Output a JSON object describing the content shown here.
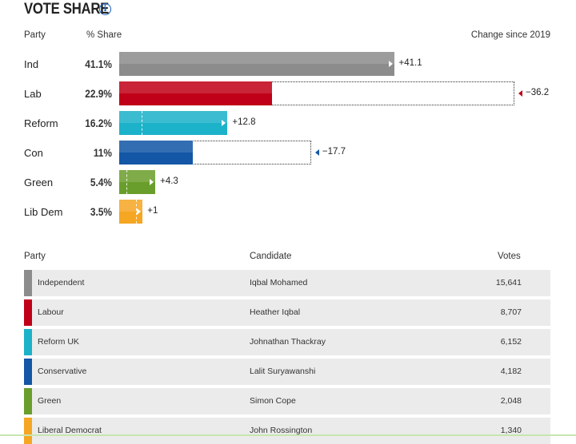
{
  "title": "VOTE SHARE",
  "info_icon": "info-icon",
  "headers": {
    "party": "Party",
    "share": "% Share",
    "change": "Change since 2019"
  },
  "chart_data": {
    "type": "bar",
    "orientation": "horizontal",
    "categories": [
      "Ind",
      "Lab",
      "Reform",
      "Con",
      "Green",
      "Lib Dem"
    ],
    "series": [
      {
        "values": [
          41.1,
          22.9,
          16.2,
          11,
          5.4,
          3.5
        ]
      }
    ],
    "previous_2019": [
      0,
      59.1,
      3.4,
      28.7,
      1.1,
      2.5
    ],
    "share_labels": [
      "41.1%",
      "22.9%",
      "16.2%",
      "11%",
      "5.4%",
      "3.5%"
    ],
    "change_labels": [
      "+41.1",
      "−36.2",
      "+12.8",
      "−17.7",
      "+4.3",
      "+1"
    ],
    "changes": [
      41.1,
      -36.2,
      12.8,
      -17.7,
      4.3,
      1
    ],
    "colors": [
      "#8c8c8c",
      "#c00018",
      "#1cb2c9",
      "#1357a6",
      "#6a9e2c",
      "#f5a623"
    ],
    "xlim": [
      0,
      59.1
    ]
  },
  "table": {
    "headers": {
      "party": "Party",
      "candidate": "Candidate",
      "votes": "Votes"
    },
    "rows": [
      {
        "party": "Independent",
        "candidate": "Iqbal Mohamed",
        "votes": "15,641",
        "color": "#8c8c8c"
      },
      {
        "party": "Labour",
        "candidate": "Heather Iqbal",
        "votes": "8,707",
        "color": "#c00018"
      },
      {
        "party": "Reform UK",
        "candidate": "Johnathan Thackray",
        "votes": "6,152",
        "color": "#1cb2c9"
      },
      {
        "party": "Conservative",
        "candidate": "Lalit Suryawanshi",
        "votes": "4,182",
        "color": "#1357a6"
      },
      {
        "party": "Green",
        "candidate": "Simon Cope",
        "votes": "2,048",
        "color": "#6a9e2c"
      },
      {
        "party": "Liberal Democrat",
        "candidate": "John Rossington",
        "votes": "1,340",
        "color": "#f5a623"
      }
    ]
  }
}
